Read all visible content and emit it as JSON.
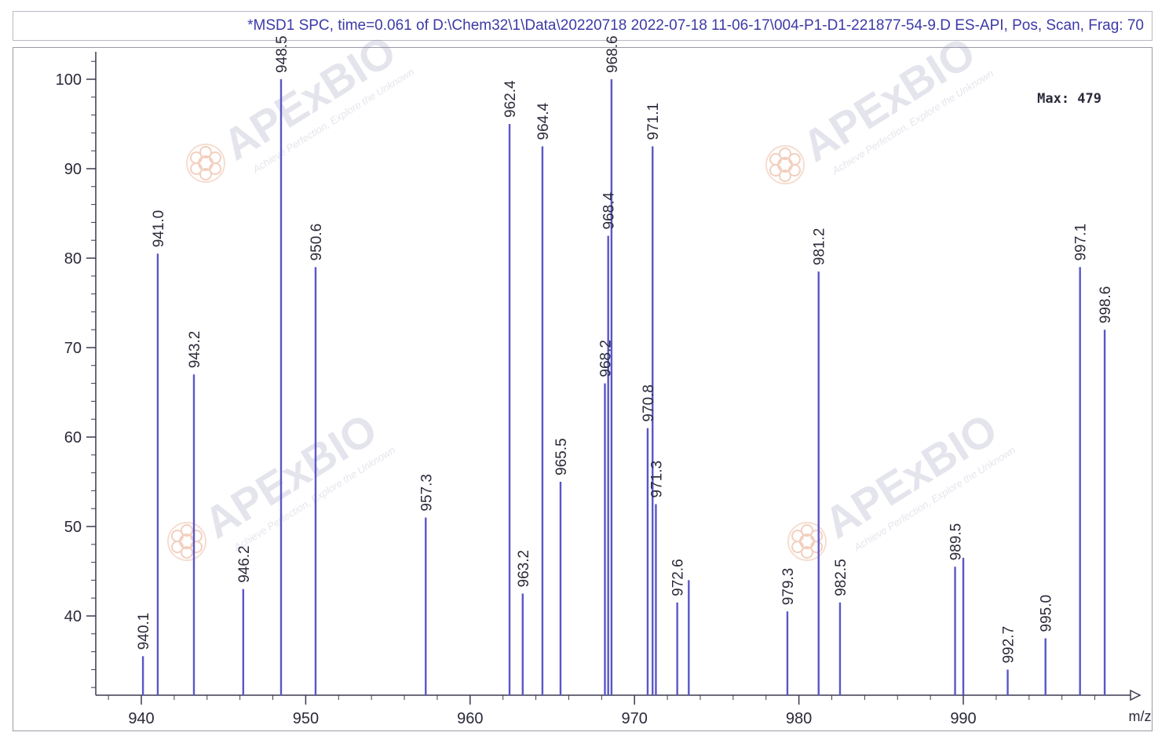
{
  "window": {
    "title": "*MSD1 SPC, time=0.061 of D:\\Chem32\\1\\Data\\20220718 2022-07-18 11-06-17\\004-P1-D1-221877-54-9.D   ES-API, Pos, Scan, Frag: 70"
  },
  "annotations": {
    "max_label": "Max:  479"
  },
  "watermarks": {
    "brand": "APExBIO",
    "tagline": "Achieve Perfection, Explore the Unknown"
  },
  "colors": {
    "peak": "#5a56c8",
    "axis": "#3a3a50",
    "text": "#2a2a3a",
    "title": "#3c3aa6"
  },
  "chart_data": {
    "type": "bar",
    "title": "",
    "xlabel": "m/z",
    "ylabel": "",
    "xlim": [
      937.3,
      999.8
    ],
    "ylim": [
      31,
      103
    ],
    "xticks": [
      940,
      950,
      960,
      970,
      980,
      990
    ],
    "yticks": [
      40,
      50,
      60,
      70,
      80,
      90,
      100
    ],
    "grid": false,
    "peaks": [
      {
        "mz": 940.1,
        "abundance": 35.5,
        "label": "940.1"
      },
      {
        "mz": 941.0,
        "abundance": 80.5,
        "label": "941.0"
      },
      {
        "mz": 943.2,
        "abundance": 67.0,
        "label": "943.2"
      },
      {
        "mz": 946.2,
        "abundance": 43.0,
        "label": "946.2"
      },
      {
        "mz": 948.5,
        "abundance": 100.0,
        "label": "948.5"
      },
      {
        "mz": 950.6,
        "abundance": 79.0,
        "label": "950.6"
      },
      {
        "mz": 957.3,
        "abundance": 51.0,
        "label": "957.3"
      },
      {
        "mz": 962.4,
        "abundance": 95.0,
        "label": "962.4"
      },
      {
        "mz": 963.2,
        "abundance": 42.5,
        "label": "963.2"
      },
      {
        "mz": 964.4,
        "abundance": 92.5,
        "label": "964.4"
      },
      {
        "mz": 965.5,
        "abundance": 55.0,
        "label": "965.5"
      },
      {
        "mz": 968.2,
        "abundance": 66.0,
        "label": "968.2"
      },
      {
        "mz": 968.4,
        "abundance": 82.5,
        "label": "968.4"
      },
      {
        "mz": 968.6,
        "abundance": 100.0,
        "label": "968.6"
      },
      {
        "mz": 970.8,
        "abundance": 61.0,
        "label": "970.8"
      },
      {
        "mz": 971.1,
        "abundance": 92.5,
        "label": "971.1"
      },
      {
        "mz": 971.3,
        "abundance": 52.5,
        "label": "971.3"
      },
      {
        "mz": 972.6,
        "abundance": 41.5,
        "label": "972.6"
      },
      {
        "mz": 973.3,
        "abundance": 44.0,
        "label": ""
      },
      {
        "mz": 979.3,
        "abundance": 40.5,
        "label": "979.3"
      },
      {
        "mz": 981.2,
        "abundance": 78.5,
        "label": "981.2"
      },
      {
        "mz": 982.5,
        "abundance": 41.5,
        "label": "982.5"
      },
      {
        "mz": 989.5,
        "abundance": 45.5,
        "label": "989.5"
      },
      {
        "mz": 990.0,
        "abundance": 46.5,
        "label": ""
      },
      {
        "mz": 992.7,
        "abundance": 34.0,
        "label": "992.7"
      },
      {
        "mz": 995.0,
        "abundance": 37.5,
        "label": "995.0"
      },
      {
        "mz": 997.1,
        "abundance": 79.0,
        "label": "997.1"
      },
      {
        "mz": 998.6,
        "abundance": 72.0,
        "label": "998.6"
      }
    ]
  }
}
